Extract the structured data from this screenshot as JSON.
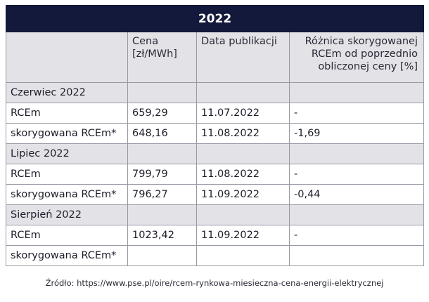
{
  "table": {
    "title": "2022",
    "headers": [
      "",
      "Cena [zł/MWh]",
      "Data publikacji",
      "Różnica skorygowanej RCEm od poprzednio obliczonej ceny [%]"
    ],
    "rows": [
      {
        "type": "group",
        "cells": [
          "Czerwiec 2022",
          "",
          "",
          ""
        ]
      },
      {
        "type": "data",
        "cells": [
          "RCEm",
          "659,29",
          "11.07.2022",
          "-"
        ]
      },
      {
        "type": "data",
        "cells": [
          "skorygowana RCEm*",
          "648,16",
          "11.08.2022",
          "-1,69"
        ]
      },
      {
        "type": "group",
        "cells": [
          "Lipiec 2022",
          "",
          "",
          ""
        ]
      },
      {
        "type": "data",
        "cells": [
          "RCEm",
          "799,79",
          "11.08.2022",
          "-"
        ]
      },
      {
        "type": "data",
        "cells": [
          "skorygowana RCEm*",
          "796,27",
          "11.09.2022",
          "-0,44"
        ]
      },
      {
        "type": "group",
        "cells": [
          "Sierpień 2022",
          "",
          "",
          ""
        ]
      },
      {
        "type": "data",
        "cells": [
          "RCEm",
          "1023,42",
          "11.09.2022",
          "-"
        ]
      },
      {
        "type": "data",
        "cells": [
          "skorygowana RCEm*",
          "",
          "",
          ""
        ]
      }
    ]
  },
  "footer": {
    "source": "Źródło: https://www.pse.pl/oire/rcem-rynkowa-miesieczna-cena-energii-elektrycznej"
  }
}
